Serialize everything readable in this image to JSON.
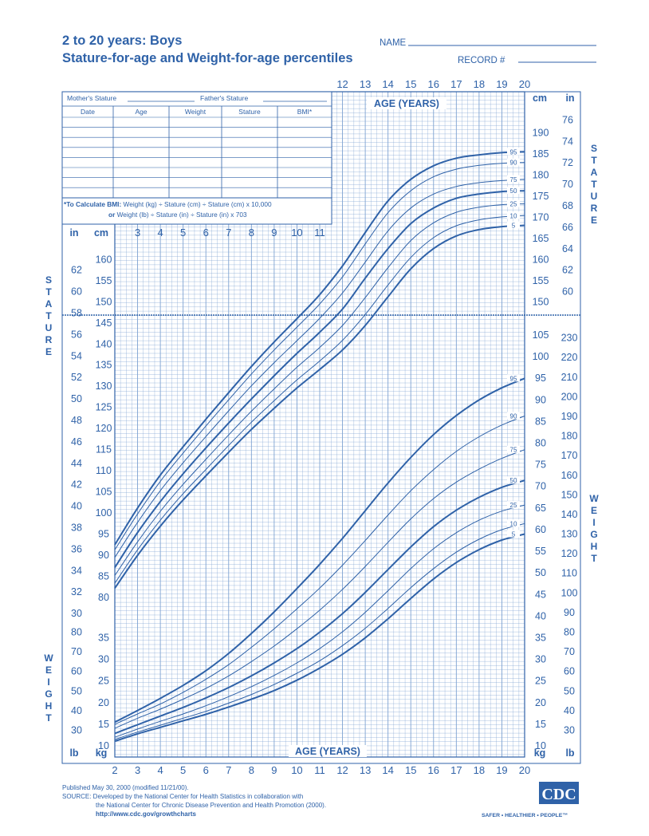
{
  "header": {
    "title": "2 to 20 years: Boys",
    "subtitle": "Stature-for-age and Weight-for-age percentiles",
    "name_label": "NAME",
    "record_label": "RECORD #"
  },
  "record_table": {
    "mothers_stature": "Mother's Stature",
    "fathers_stature": "Father's Stature",
    "columns": [
      "Date",
      "Age",
      "Weight",
      "Stature",
      "BMI*"
    ],
    "bmi_note_bold": "*To Calculate BMI:",
    "bmi_note_metric": "Weight (kg) ÷ Stature (cm) ÷ Stature (cm) x 10,000",
    "bmi_note_or": "or",
    "bmi_note_imperial": "Weight (lb) ÷ Stature (in) ÷ Stature (in) x 703"
  },
  "side_labels": {
    "stature": [
      "S",
      "T",
      "A",
      "T",
      "U",
      "R",
      "E"
    ],
    "weight": [
      "W",
      "E",
      "I",
      "G",
      "H",
      "T"
    ]
  },
  "units": {
    "in": "in",
    "cm": "cm",
    "lb": "lb",
    "kg": "kg"
  },
  "axis_title": "AGE (YEARS)",
  "footer": {
    "published": "Published May 30, 2000 (modified 11/21/00).",
    "source_line1": "SOURCE: Developed by the National Center for Health Statistics in collaboration with",
    "source_line2": "the National Center for Chronic Disease Prevention and Health Promotion (2000).",
    "url": "http://www.cdc.gov/growthcharts",
    "logo": "CDC",
    "tagline": "SAFER • HEALTHIER • PEOPLE™"
  },
  "colors": {
    "ink": "#2f62a8",
    "grid": "#7fa3d2"
  },
  "chart_data": {
    "type": "line",
    "x_ages": [
      2,
      3,
      4,
      5,
      6,
      7,
      8,
      9,
      10,
      11,
      12,
      13,
      14,
      15,
      16,
      17,
      18,
      19,
      20
    ],
    "xlim": [
      2,
      20
    ],
    "top_age_ticks": [
      12,
      13,
      14,
      15,
      16,
      17,
      18,
      19,
      20
    ],
    "top_left_age_ticks": [
      3,
      4,
      5,
      6,
      7,
      8,
      9,
      10,
      11
    ],
    "stature": {
      "unit": "cm",
      "ylim": [
        77,
        198
      ],
      "left_cm_ticks": [
        80,
        85,
        90,
        95,
        100,
        105,
        110,
        115,
        120,
        125,
        130,
        135,
        140,
        145,
        150,
        155,
        160
      ],
      "left_in_ticks": [
        30,
        32,
        34,
        36,
        38,
        40,
        42,
        44,
        46,
        48,
        50,
        52,
        54,
        56,
        58,
        60,
        62
      ],
      "right_cm_ticks": [
        150,
        155,
        160,
        165,
        170,
        175,
        180,
        185,
        190
      ],
      "right_in_ticks": [
        60,
        62,
        64,
        66,
        68,
        70,
        72,
        74,
        76
      ],
      "series": [
        {
          "name": "95",
          "values": [
            92.3,
            101.0,
            108.8,
            115.5,
            122.0,
            128.3,
            134.5,
            140.3,
            145.8,
            151.5,
            158.3,
            166.2,
            173.7,
            178.8,
            182.0,
            183.8,
            184.6,
            185.1,
            185.3
          ]
        },
        {
          "name": "90",
          "values": [
            91.1,
            99.6,
            107.3,
            114.0,
            120.4,
            126.6,
            132.7,
            138.4,
            143.8,
            149.3,
            155.7,
            163.5,
            170.9,
            176.1,
            179.4,
            181.2,
            182.1,
            182.6,
            182.8
          ]
        },
        {
          "name": "75",
          "values": [
            89.3,
            97.6,
            105.1,
            111.7,
            117.9,
            124.0,
            129.9,
            135.4,
            140.6,
            145.9,
            151.9,
            159.2,
            166.6,
            172.0,
            175.3,
            177.1,
            178.0,
            178.5,
            178.8
          ]
        },
        {
          "name": "50",
          "values": [
            86.9,
            95.2,
            102.5,
            109.1,
            115.2,
            121.1,
            126.8,
            132.3,
            137.6,
            142.6,
            148.1,
            155.4,
            162.4,
            168.3,
            172.0,
            174.3,
            175.3,
            175.9,
            176.1
          ]
        },
        {
          "name": "25",
          "values": [
            85.0,
            93.0,
            100.2,
            106.6,
            112.5,
            118.3,
            123.9,
            129.2,
            134.3,
            139.0,
            144.2,
            150.8,
            157.9,
            164.3,
            168.5,
            171.0,
            172.2,
            172.8,
            173.0
          ]
        },
        {
          "name": "10",
          "values": [
            83.2,
            91.1,
            98.1,
            104.4,
            110.1,
            115.8,
            121.3,
            126.4,
            131.3,
            135.8,
            140.7,
            146.8,
            153.8,
            160.3,
            165.0,
            167.8,
            169.2,
            169.9,
            170.2
          ]
        },
        {
          "name": "5",
          "values": [
            82.0,
            89.8,
            96.7,
            102.9,
            108.6,
            114.2,
            119.6,
            124.6,
            129.4,
            133.8,
            138.4,
            144.2,
            151.0,
            157.6,
            162.4,
            165.4,
            166.9,
            167.6,
            167.9
          ]
        }
      ]
    },
    "weight": {
      "unit": "kg",
      "ylim": [
        7,
        110
      ],
      "left_kg_ticks": [
        10,
        15,
        20,
        25,
        30,
        35
      ],
      "left_lb_ticks": [
        30,
        40,
        50,
        60,
        70,
        80
      ],
      "right_kg_ticks": [
        10,
        15,
        20,
        25,
        30,
        35,
        40,
        45,
        50,
        55,
        60,
        65,
        70,
        75,
        80,
        85,
        90,
        95,
        100,
        105
      ],
      "right_lb_ticks": [
        30,
        40,
        50,
        60,
        70,
        80,
        90,
        100,
        110,
        120,
        130,
        140,
        150,
        160,
        170,
        180,
        190,
        200,
        210,
        220,
        230
      ],
      "series": [
        {
          "name": "95",
          "values": [
            15.3,
            18.0,
            20.8,
            23.8,
            27.2,
            31.2,
            35.8,
            40.8,
            46.2,
            51.8,
            57.8,
            64.2,
            70.6,
            76.5,
            81.8,
            86.2,
            89.8,
            92.6,
            94.8
          ]
        },
        {
          "name": "90",
          "values": [
            14.8,
            17.2,
            19.5,
            22.2,
            25.2,
            28.6,
            32.6,
            36.9,
            41.5,
            46.3,
            51.6,
            57.3,
            63.2,
            68.8,
            73.7,
            77.9,
            81.3,
            84.0,
            86.1
          ]
        },
        {
          "name": "75",
          "values": [
            13.9,
            16.2,
            18.3,
            20.6,
            23.1,
            26.0,
            29.3,
            32.9,
            36.9,
            41.2,
            46.0,
            51.3,
            56.9,
            62.3,
            67.0,
            70.8,
            73.8,
            76.3,
            78.3
          ]
        },
        {
          "name": "50",
          "values": [
            12.7,
            14.7,
            16.7,
            18.7,
            20.9,
            23.3,
            26.0,
            29.0,
            32.3,
            36.1,
            40.4,
            45.3,
            50.6,
            55.8,
            60.5,
            64.3,
            67.3,
            69.6,
            71.2
          ]
        },
        {
          "name": "25",
          "values": [
            11.8,
            13.7,
            15.5,
            17.2,
            19.1,
            21.2,
            23.5,
            26.1,
            29.0,
            32.3,
            36.2,
            40.7,
            45.7,
            50.8,
            55.4,
            59.1,
            62.0,
            64.1,
            65.5
          ]
        },
        {
          "name": "10",
          "values": [
            11.3,
            13.0,
            14.6,
            16.2,
            17.8,
            19.7,
            21.7,
            24.0,
            26.6,
            29.5,
            33.0,
            37.0,
            41.6,
            46.4,
            50.8,
            54.6,
            57.6,
            59.8,
            61.2
          ]
        },
        {
          "name": "5",
          "values": [
            10.9,
            12.6,
            14.1,
            15.6,
            17.1,
            18.8,
            20.6,
            22.6,
            25.0,
            27.8,
            31.0,
            34.8,
            39.2,
            43.9,
            48.4,
            52.2,
            55.2,
            57.4,
            58.8
          ]
        }
      ]
    }
  }
}
